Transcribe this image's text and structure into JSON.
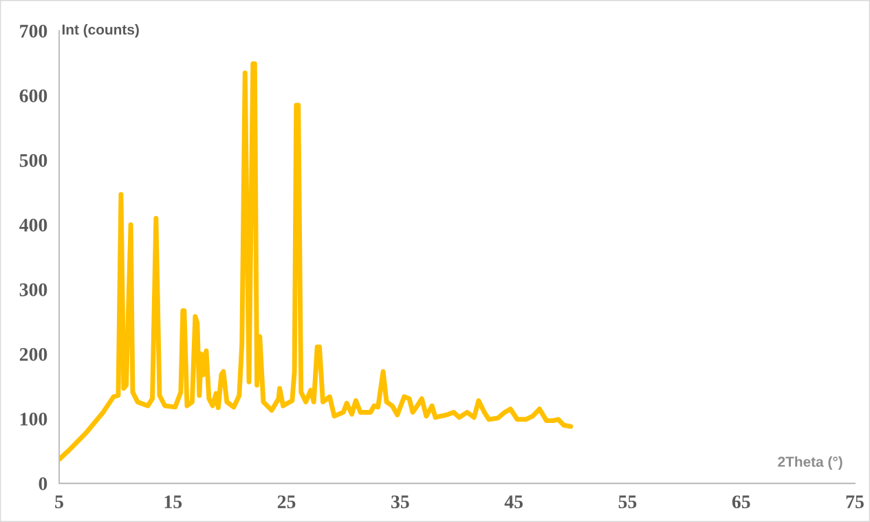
{
  "chart_data": {
    "type": "line",
    "xlabel": "2Theta (°)",
    "ylabel": "Int (counts)",
    "xlim": [
      5,
      75
    ],
    "xticks": [
      5,
      15,
      25,
      35,
      45,
      55,
      65,
      75
    ],
    "ylim": [
      0,
      700
    ],
    "yticks": [
      0,
      100,
      200,
      300,
      400,
      500,
      600,
      700
    ],
    "grid": false,
    "marker": "none",
    "line_style": "solid",
    "series": [
      {
        "color": "#ffc000",
        "x": [
          5.0,
          5.85,
          7.36,
          8.87,
          9.78,
          10.2,
          10.44,
          10.68,
          10.9,
          11.3,
          11.47,
          11.9,
          12.8,
          13.2,
          13.52,
          13.83,
          14.3,
          15.2,
          15.7,
          15.88,
          16.0,
          16.25,
          16.7,
          16.97,
          17.15,
          17.33,
          17.5,
          17.7,
          17.94,
          18.18,
          18.5,
          18.8,
          19.0,
          19.27,
          19.45,
          19.75,
          20.36,
          20.84,
          21.08,
          21.35,
          21.7,
          22.05,
          22.2,
          22.4,
          22.65,
          22.96,
          23.7,
          24.3,
          24.4,
          24.7,
          25.5,
          25.7,
          25.86,
          26.04,
          26.28,
          26.7,
          27.13,
          27.4,
          27.7,
          27.9,
          28.2,
          28.8,
          29.2,
          30.0,
          30.3,
          30.75,
          31.1,
          31.5,
          32.4,
          32.7,
          33.05,
          33.5,
          33.8,
          34.3,
          34.75,
          35.35,
          35.8,
          36.1,
          36.5,
          36.9,
          37.3,
          37.8,
          38.1,
          39.1,
          39.7,
          40.2,
          40.9,
          41.5,
          41.9,
          42.4,
          42.8,
          43.6,
          44.2,
          44.7,
          45.3,
          46.05,
          46.65,
          47.26,
          47.87,
          48.47,
          48.9,
          49.4,
          50.0
        ],
        "values": [
          37,
          51,
          78,
          110,
          134,
          136,
          447,
          147,
          152,
          400,
          141,
          126,
          120,
          131,
          410,
          136,
          120,
          118,
          141,
          267,
          267,
          120,
          126,
          258,
          248,
          136,
          200,
          168,
          205,
          131,
          120,
          139,
          117,
          168,
          173,
          126,
          118,
          136,
          216,
          635,
          157,
          649,
          649,
          152,
          227,
          126,
          113,
          131,
          147,
          120,
          128,
          173,
          585,
          585,
          141,
          126,
          144,
          126,
          211,
          211,
          126,
          134,
          104,
          110,
          124,
          107,
          128,
          110,
          110,
          120,
          118,
          173,
          126,
          120,
          106,
          134,
          131,
          110,
          120,
          131,
          104,
          120,
          102,
          106,
          110,
          102,
          110,
          102,
          128,
          110,
          99,
          101,
          110,
          115,
          99,
          99,
          104,
          115,
          97,
          97,
          99,
          90,
          88
        ]
      }
    ]
  }
}
